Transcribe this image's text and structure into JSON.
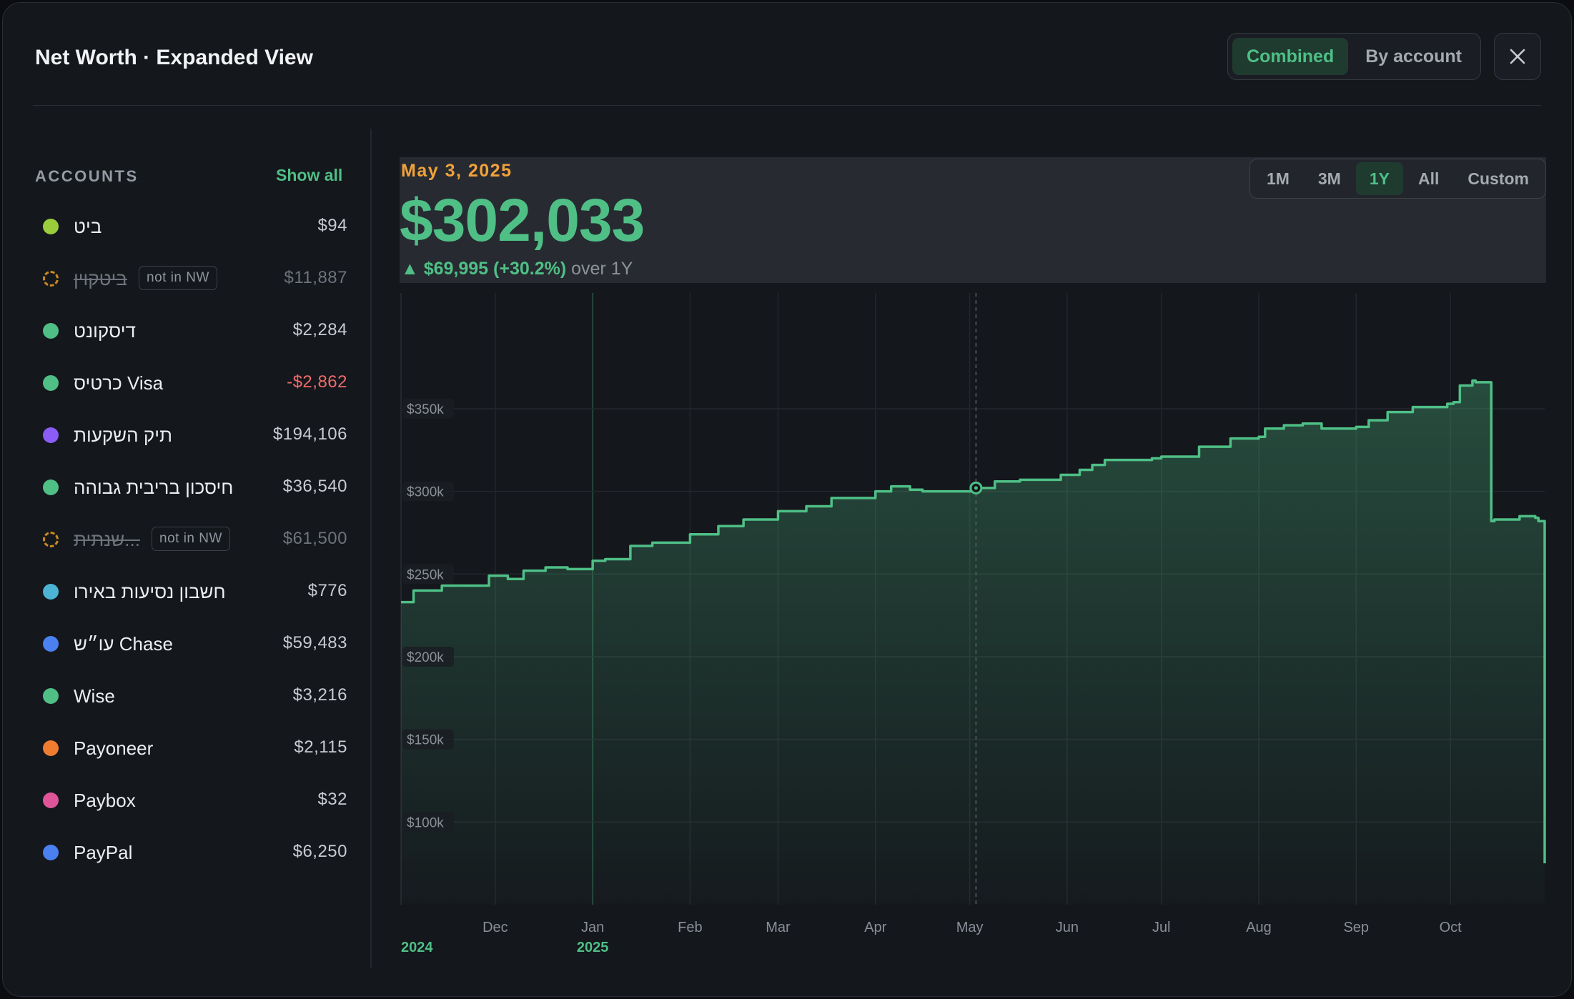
{
  "header": {
    "title": "Net Worth · Expanded View",
    "view_toggle": [
      {
        "label": "Combined",
        "active": true
      },
      {
        "label": "By account",
        "active": false
      }
    ],
    "close_icon": "close-icon"
  },
  "sidebar": {
    "heading": "ACCOUNTS",
    "show_all_label": "Show all",
    "not_in_nw_label": "not in NW",
    "accounts": [
      {
        "name": "ביט",
        "value": "$94",
        "color": "#9acd3c",
        "in_nw": true,
        "negative": false
      },
      {
        "name": "ביטקוין",
        "value": "$11,887",
        "color": "#c98a1f",
        "in_nw": false,
        "negative": false
      },
      {
        "name": "דיסקונט",
        "value": "$2,284",
        "color": "#4fbf86",
        "in_nw": true,
        "negative": false
      },
      {
        "name": "כרטיס Visa",
        "value": "-$2,862",
        "color": "#4fbf86",
        "in_nw": true,
        "negative": true
      },
      {
        "name": "תיק השקעות",
        "value": "$194,106",
        "color": "#8b5cf6",
        "in_nw": true,
        "negative": false
      },
      {
        "name": "חיסכון בריבית גבוהה",
        "value": "$36,540",
        "color": "#4fbf86",
        "in_nw": true,
        "negative": false
      },
      {
        "name": "שנתית...",
        "value": "$61,500",
        "color": "#c98a1f",
        "in_nw": false,
        "negative": false
      },
      {
        "name": "חשבון נסיעות באירו",
        "value": "$776",
        "color": "#4cb3d4",
        "in_nw": true,
        "negative": false
      },
      {
        "name": "עו״ש Chase",
        "value": "$59,483",
        "color": "#4a80f0",
        "in_nw": true,
        "negative": false
      },
      {
        "name": "Wise",
        "value": "$3,216",
        "color": "#4fbf86",
        "in_nw": true,
        "negative": false
      },
      {
        "name": "Payoneer",
        "value": "$2,115",
        "color": "#f07c30",
        "in_nw": true,
        "negative": false
      },
      {
        "name": "Paybox",
        "value": "$32",
        "color": "#e0559a",
        "in_nw": true,
        "negative": false
      },
      {
        "name": "PayPal",
        "value": "$6,250",
        "color": "#4a80f0",
        "in_nw": true,
        "negative": false
      }
    ]
  },
  "summary": {
    "selected_date": "May 3, 2025",
    "value": "$302,033",
    "change_arrow": "▲",
    "change": "$69,995 (+30.2%)",
    "period": "over 1Y"
  },
  "range_options": [
    {
      "label": "1M",
      "active": false
    },
    {
      "label": "3M",
      "active": false
    },
    {
      "label": "1Y",
      "active": true
    },
    {
      "label": "All",
      "active": false
    },
    {
      "label": "Custom",
      "active": false
    }
  ],
  "chart_data": {
    "type": "area",
    "x_start": "2024-11-01",
    "x_end": "2025-10-31",
    "x_months": [
      "Dec",
      "Jan",
      "Feb",
      "Mar",
      "Apr",
      "May",
      "Jun",
      "Jul",
      "Aug",
      "Sep",
      "Oct"
    ],
    "month_dates": [
      "2024-12-01",
      "2025-01-01",
      "2025-02-01",
      "2025-03-01",
      "2025-04-01",
      "2025-05-01",
      "2025-06-01",
      "2025-07-01",
      "2025-08-01",
      "2025-09-01",
      "2025-10-01"
    ],
    "year_labels": [
      {
        "label": "2024",
        "date": "2024-11-01"
      },
      {
        "label": "2025",
        "date": "2025-01-01"
      }
    ],
    "y_ticks": [
      100000,
      150000,
      200000,
      250000,
      300000,
      350000
    ],
    "y_tick_labels": [
      "$100k",
      "$150k",
      "$200k",
      "$250k",
      "$300k",
      "$350k"
    ],
    "ylim": [
      50000,
      420000
    ],
    "grid": true,
    "line_color": "#4fbf86",
    "hover_date": "2025-05-03",
    "hover_value": 302033,
    "x": [
      "2024-11-01",
      "2024-11-05",
      "2024-11-14",
      "2024-11-21",
      "2024-11-29",
      "2024-12-05",
      "2024-12-10",
      "2024-12-17",
      "2024-12-24",
      "2025-01-01",
      "2025-01-05",
      "2025-01-13",
      "2025-01-20",
      "2025-02-01",
      "2025-02-10",
      "2025-02-18",
      "2025-03-01",
      "2025-03-10",
      "2025-03-18",
      "2025-04-01",
      "2025-04-06",
      "2025-04-12",
      "2025-04-16",
      "2025-05-03",
      "2025-05-09",
      "2025-05-17",
      "2025-05-30",
      "2025-06-05",
      "2025-06-09",
      "2025-06-13",
      "2025-06-28",
      "2025-07-01",
      "2025-07-13",
      "2025-07-23",
      "2025-08-01",
      "2025-08-03",
      "2025-08-09",
      "2025-08-15",
      "2025-08-21",
      "2025-09-01",
      "2025-09-05",
      "2025-09-11",
      "2025-09-19",
      "2025-09-30",
      "2025-10-02",
      "2025-10-04",
      "2025-10-08",
      "2025-10-09",
      "2025-10-14",
      "2025-10-15",
      "2025-10-23",
      "2025-10-28",
      "2025-10-29",
      "2025-10-31"
    ],
    "values": [
      233000,
      240000,
      243000,
      243000,
      249000,
      247000,
      252000,
      254000,
      253000,
      258000,
      259000,
      267000,
      269000,
      274000,
      279000,
      283000,
      288000,
      291000,
      296000,
      300000,
      303000,
      301000,
      300000,
      302033,
      306000,
      307000,
      310000,
      313000,
      316000,
      319000,
      320000,
      321000,
      327000,
      332000,
      333000,
      338000,
      340000,
      341000,
      338000,
      339000,
      343000,
      348000,
      351000,
      353000,
      354000,
      364000,
      367000,
      366000,
      282000,
      283000,
      285000,
      284000,
      282000,
      75000
    ]
  }
}
